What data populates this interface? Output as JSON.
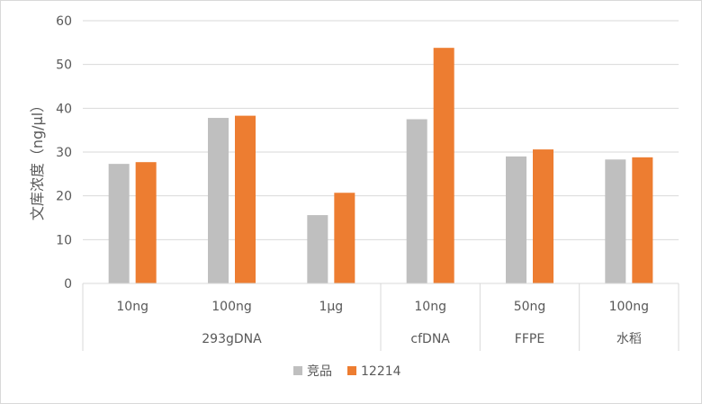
{
  "chart_data": {
    "type": "bar",
    "ylabel": "文库浓度（ng/μl）",
    "ylim": [
      0,
      60
    ],
    "yticks": [
      0,
      10,
      20,
      30,
      40,
      50,
      60
    ],
    "grid": "horizontal",
    "legend_position": "bottom",
    "categories": [
      "10ng",
      "100ng",
      "1μg",
      "10ng",
      "50ng",
      "100ng"
    ],
    "groups": [
      {
        "label": "293gDNA",
        "span": 3
      },
      {
        "label": "cfDNA",
        "span": 1
      },
      {
        "label": "FFPE",
        "span": 1
      },
      {
        "label": "水稻",
        "span": 1
      }
    ],
    "series": [
      {
        "name": "竞品",
        "color": "#bfbfbf",
        "values": [
          27.3,
          37.8,
          15.6,
          37.5,
          29.0,
          28.3
        ]
      },
      {
        "name": "12214",
        "color": "#ed7d31",
        "values": [
          27.7,
          38.3,
          20.7,
          53.8,
          30.6,
          28.8
        ]
      }
    ]
  }
}
